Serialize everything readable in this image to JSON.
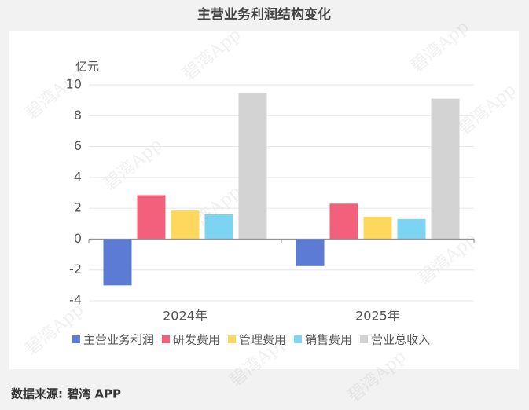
{
  "chart_data": {
    "type": "bar",
    "title": "主营业务利润结构变化",
    "y_unit": "亿元",
    "categories": [
      "2024年",
      "2025年"
    ],
    "series": [
      {
        "name": "主营业务利润",
        "color": "#5b7bd5",
        "values": [
          -3.0,
          -1.75
        ]
      },
      {
        "name": "研发费用",
        "color": "#f2607b",
        "values": [
          2.85,
          2.3
        ]
      },
      {
        "name": "管理费用",
        "color": "#fdd85d",
        "values": [
          1.85,
          1.45
        ]
      },
      {
        "name": "销售费用",
        "color": "#7dd3f2",
        "values": [
          1.6,
          1.3
        ]
      },
      {
        "name": "营业总收入",
        "color": "#d3d3d3",
        "values": [
          9.45,
          9.1
        ]
      }
    ],
    "ylim": [
      -4,
      10
    ],
    "yticks": [
      -4,
      -2,
      0,
      2,
      4,
      6,
      8,
      10
    ],
    "grid": true,
    "legend": "bottom",
    "source": "数据来源: 碧湾 APP",
    "watermark": "碧湾App"
  }
}
